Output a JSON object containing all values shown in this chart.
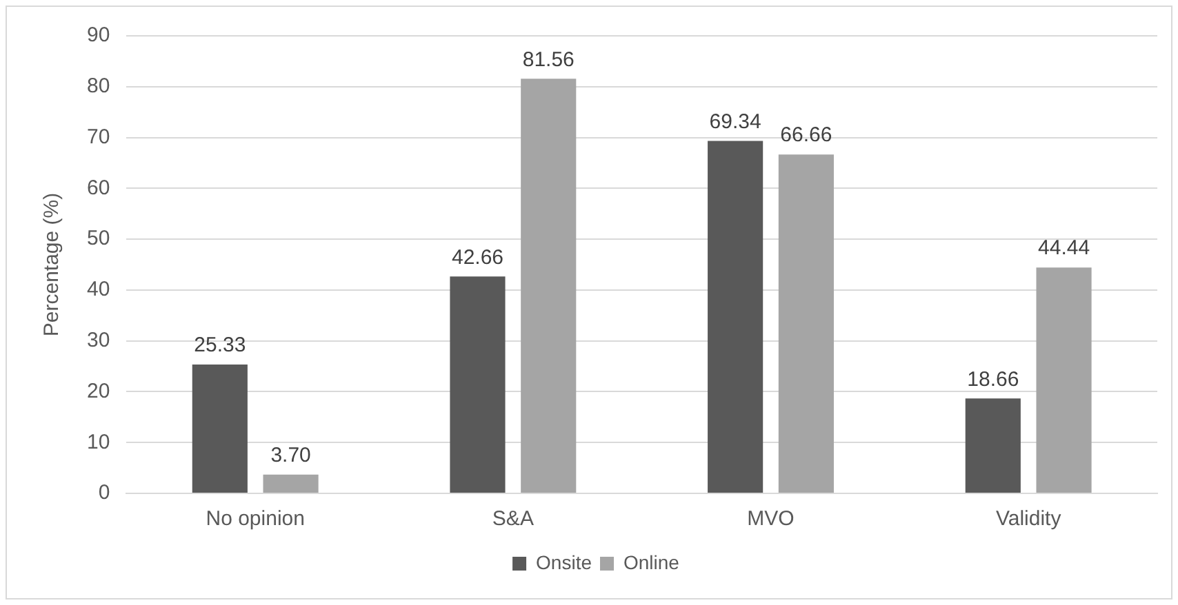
{
  "chart_data": {
    "type": "bar",
    "ylabel": "Percentage (%)",
    "categories": [
      "No opinion",
      "S&A",
      "MVO",
      "Validity"
    ],
    "series": [
      {
        "name": "Onsite",
        "color": "#595959",
        "values": [
          25.33,
          42.66,
          69.34,
          18.66
        ],
        "value_labels": [
          "25.33",
          "42.66",
          "69.34",
          "18.66"
        ]
      },
      {
        "name": "Online",
        "color": "#a5a5a5",
        "values": [
          3.7,
          81.56,
          66.66,
          44.44
        ],
        "value_labels": [
          "3.70",
          "81.56",
          "66.66",
          "44.44"
        ]
      }
    ],
    "ylim": [
      0,
      90
    ],
    "yticks": [
      0,
      10,
      20,
      30,
      40,
      50,
      60,
      70,
      80,
      90
    ],
    "grid": "y",
    "legend": "bottom"
  }
}
